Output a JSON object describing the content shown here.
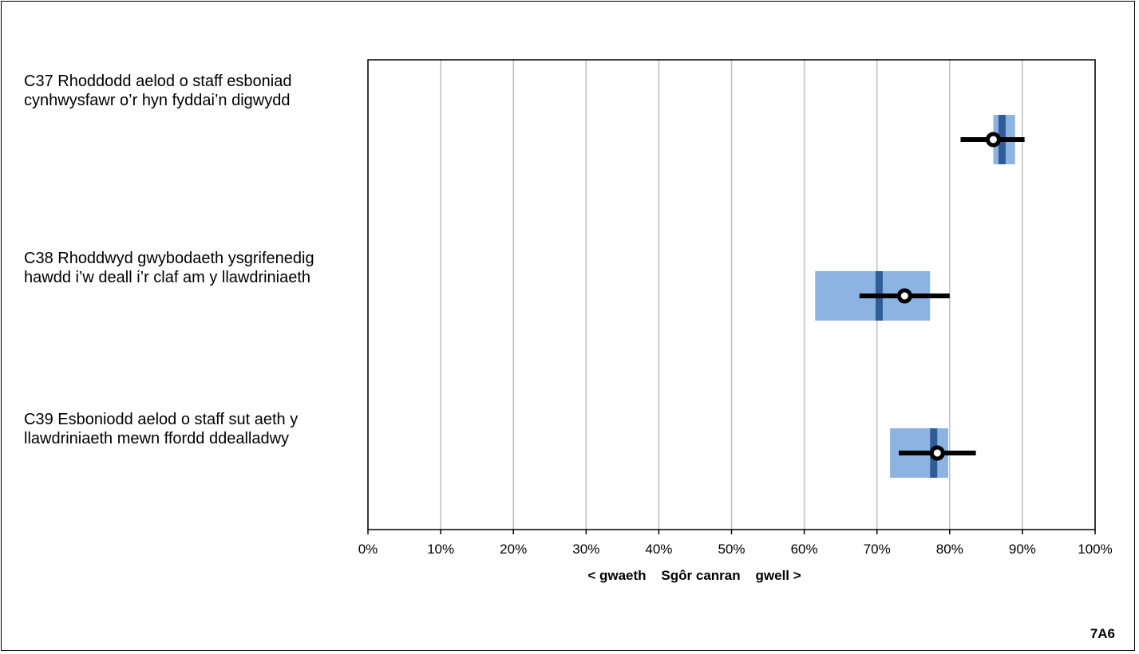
{
  "chart_data": {
    "type": "range",
    "title": "",
    "xlabel": "< gwaeth    Sgôr canran    gwell >",
    "xlim": [
      0,
      100
    ],
    "x_ticks": [
      "0%",
      "10%",
      "20%",
      "30%",
      "40%",
      "50%",
      "60%",
      "70%",
      "80%",
      "90%",
      "100%"
    ],
    "grid": true,
    "items": [
      {
        "label": "C37 Rhoddodd aelod o staff esboniad cynhwysfawr o’r hyn fyddai’n digwydd",
        "range_low": 86,
        "range_high": 89,
        "benchmark": 87.2,
        "score": 86,
        "ci_low": 81.5,
        "ci_high": 90.3
      },
      {
        "label": "C38 Rhoddwyd gwybodaeth ysgrifenedig hawdd i’w deall i’r claf am y llawdriniaeth",
        "range_low": 61.5,
        "range_high": 77.3,
        "benchmark": 70.3,
        "score": 73.8,
        "ci_low": 67.6,
        "ci_high": 80
      },
      {
        "label": "C39 Esboniodd aelod o staff sut aeth y llawdriniaeth mewn ffordd ddealladwy",
        "range_low": 71.8,
        "range_high": 79.8,
        "benchmark": 77.8,
        "score": 78.3,
        "ci_low": 73,
        "ci_high": 83.6
      }
    ],
    "colors": {
      "range": "#8db3e2",
      "benchmark": "#2f5b96",
      "score": "#000000",
      "grid": "#bfbfbf"
    }
  },
  "footer": {
    "code": "7A6"
  }
}
